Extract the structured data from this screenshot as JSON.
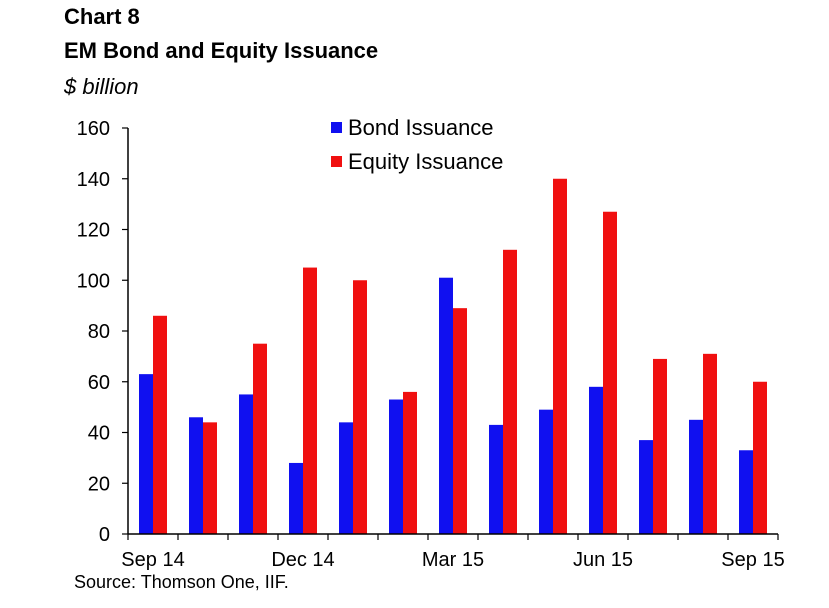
{
  "header": {
    "chart_number": "Chart 8",
    "title": "EM Bond and Equity Issuance",
    "unit": "$ billion"
  },
  "source": "Source: Thomson One, IIF.",
  "chart_data": {
    "type": "bar",
    "categories": [
      "Sep 14",
      "Oct 14",
      "Nov 14",
      "Dec 14",
      "Jan 15",
      "Feb 15",
      "Mar 15",
      "Apr 15",
      "May 15",
      "Jun 15",
      "Jul 15",
      "Aug 15",
      "Sep 15"
    ],
    "tick_labels": [
      "Sep 14",
      "Dec 14",
      "Mar 15",
      "Jun 15",
      "Sep 15"
    ],
    "series": [
      {
        "name": "Bond Issuance",
        "color": "#1010f0",
        "values": [
          63,
          46,
          55,
          28,
          44,
          53,
          101,
          43,
          49,
          58,
          37,
          45,
          33
        ]
      },
      {
        "name": "Equity Issuance",
        "color": "#f01010",
        "values": [
          86,
          44,
          75,
          105,
          100,
          56,
          89,
          112,
          140,
          127,
          69,
          71,
          60
        ]
      }
    ],
    "ylim": [
      0,
      160
    ],
    "yticks": [
      0,
      20,
      40,
      60,
      80,
      100,
      120,
      140,
      160
    ],
    "grid": false,
    "legend_position": "top-center",
    "title": "EM Bond and Equity Issuance",
    "ylabel": "$ billion",
    "xlabel": ""
  }
}
